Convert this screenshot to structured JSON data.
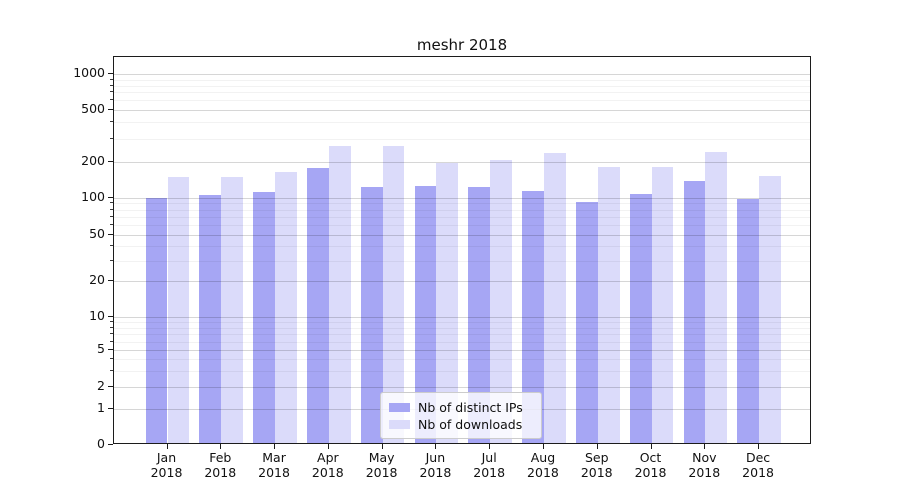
{
  "title": "meshr 2018",
  "chart_data": {
    "type": "bar",
    "title": "meshr 2018",
    "yscale": "symlog",
    "ylim": [
      0,
      1000
    ],
    "grid": true,
    "yticks": [
      0,
      1,
      2,
      5,
      10,
      20,
      50,
      100,
      200,
      500,
      1000
    ],
    "categories": [
      "Jan 2018",
      "Feb 2018",
      "Mar 2018",
      "Apr 2018",
      "May 2018",
      "Jun 2018",
      "Jul 2018",
      "Aug 2018",
      "Sep 2018",
      "Oct 2018",
      "Nov 2018",
      "Dec 2018"
    ],
    "xtick_month": [
      "Jan",
      "Feb",
      "Mar",
      "Apr",
      "May",
      "Jun",
      "Jul",
      "Aug",
      "Sep",
      "Oct",
      "Nov",
      "Dec"
    ],
    "xtick_year": "2018",
    "series": [
      {
        "name": "Nb of distinct IPs",
        "color": "#a6a6f4",
        "values": [
          100,
          105,
          112,
          177,
          122,
          125,
          124,
          114,
          92,
          108,
          138,
          97
        ]
      },
      {
        "name": "Nb of downloads",
        "color": "#dbdbfa",
        "values": [
          150,
          148,
          163,
          262,
          262,
          195,
          205,
          232,
          181,
          181,
          238,
          151
        ]
      }
    ],
    "legend_position": "lower center"
  }
}
